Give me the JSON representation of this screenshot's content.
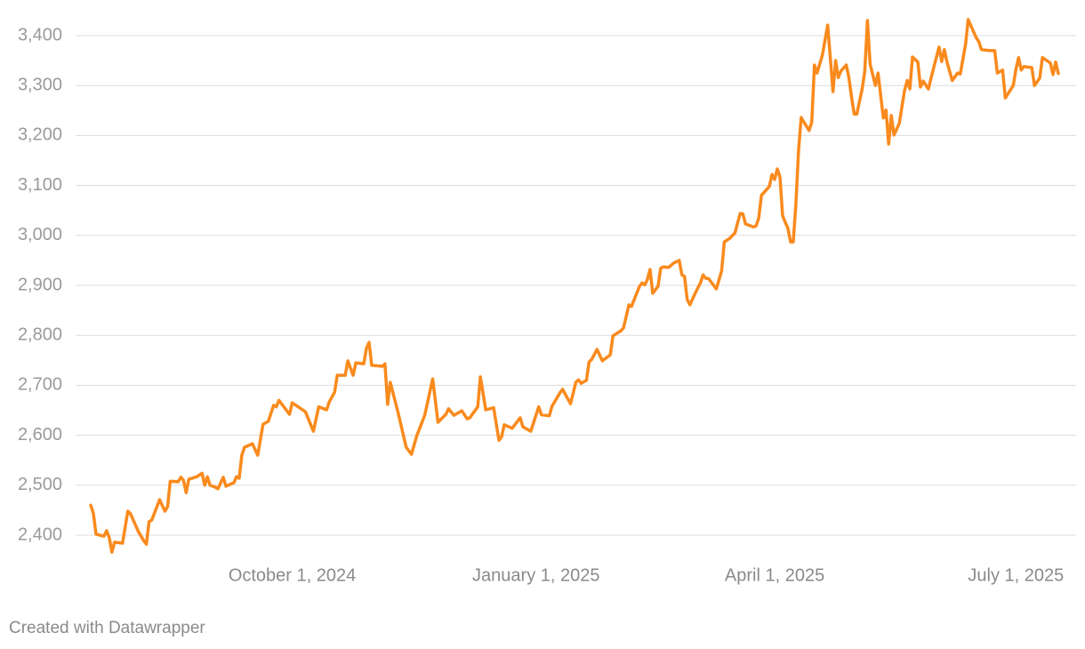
{
  "chart_data": {
    "type": "line",
    "color": "#f98a1d",
    "grid": true,
    "ylim": [
      2400,
      3400
    ],
    "yticks": [
      {
        "value": 2400,
        "label": "2,400"
      },
      {
        "value": 2500,
        "label": "2,500"
      },
      {
        "value": 2600,
        "label": "2,600"
      },
      {
        "value": 2700,
        "label": "2,700"
      },
      {
        "value": 2800,
        "label": "2,800"
      },
      {
        "value": 2900,
        "label": "2,900"
      },
      {
        "value": 3000,
        "label": "3,000"
      },
      {
        "value": 3100,
        "label": "3,100"
      },
      {
        "value": 3200,
        "label": "3,200"
      },
      {
        "value": 3300,
        "label": "3,300"
      },
      {
        "value": 3400,
        "label": "3,400"
      }
    ],
    "xlim": [
      "2024-07-17",
      "2025-07-17"
    ],
    "xticks": [
      {
        "value": "2024-10-01",
        "label": "October 1, 2024"
      },
      {
        "value": "2025-01-01",
        "label": "January 1, 2025"
      },
      {
        "value": "2025-04-01",
        "label": "April 1, 2025"
      },
      {
        "value": "2025-07-01",
        "label": "July 1, 2025"
      }
    ],
    "x": [
      "2024-07-17",
      "2024-07-18",
      "2024-07-19",
      "2024-07-22",
      "2024-07-23",
      "2024-07-24",
      "2024-07-25",
      "2024-07-26",
      "2024-07-29",
      "2024-07-31",
      "2024-08-01",
      "2024-08-04",
      "2024-08-06",
      "2024-08-07",
      "2024-08-08",
      "2024-08-09",
      "2024-08-12",
      "2024-08-14",
      "2024-08-15",
      "2024-08-16",
      "2024-08-19",
      "2024-08-20",
      "2024-08-21",
      "2024-08-22",
      "2024-08-23",
      "2024-08-26",
      "2024-08-28",
      "2024-08-29",
      "2024-08-30",
      "2024-08-31",
      "2024-09-02",
      "2024-09-03",
      "2024-09-05",
      "2024-09-06",
      "2024-09-09",
      "2024-09-10",
      "2024-09-11",
      "2024-09-12",
      "2024-09-13",
      "2024-09-16",
      "2024-09-18",
      "2024-09-20",
      "2024-09-22",
      "2024-09-24",
      "2024-09-25",
      "2024-09-26",
      "2024-09-30",
      "2024-10-01",
      "2024-10-06",
      "2024-10-08",
      "2024-10-09",
      "2024-10-11",
      "2024-10-14",
      "2024-10-15",
      "2024-10-17",
      "2024-10-18",
      "2024-10-21",
      "2024-10-22",
      "2024-10-24",
      "2024-10-25",
      "2024-10-28",
      "2024-10-29",
      "2024-10-30",
      "2024-10-31",
      "2024-11-04",
      "2024-11-05",
      "2024-11-06",
      "2024-11-07",
      "2024-11-10",
      "2024-11-13",
      "2024-11-15",
      "2024-11-17",
      "2024-11-20",
      "2024-11-23",
      "2024-11-25",
      "2024-11-28",
      "2024-11-29",
      "2024-12-01",
      "2024-12-04",
      "2024-12-06",
      "2024-12-07",
      "2024-12-10",
      "2024-12-11",
      "2024-12-13",
      "2024-12-16",
      "2024-12-18",
      "2024-12-19",
      "2024-12-20",
      "2024-12-23",
      "2024-12-26",
      "2024-12-27",
      "2024-12-30",
      "2025-01-02",
      "2025-01-03",
      "2025-01-06",
      "2025-01-07",
      "2025-01-10",
      "2025-01-11",
      "2025-01-14",
      "2025-01-16",
      "2025-01-17",
      "2025-01-18",
      "2025-01-20",
      "2025-01-21",
      "2025-01-22",
      "2025-01-24",
      "2025-01-26",
      "2025-01-29",
      "2025-01-30",
      "2025-02-02",
      "2025-02-03",
      "2025-02-05",
      "2025-02-06",
      "2025-02-09",
      "2025-02-10",
      "2025-02-11",
      "2025-02-12",
      "2025-02-13",
      "2025-02-14",
      "2025-02-16",
      "2025-02-17",
      "2025-02-18",
      "2025-02-20",
      "2025-02-22",
      "2025-02-24",
      "2025-02-25",
      "2025-02-26",
      "2025-02-27",
      "2025-02-28",
      "2025-03-02",
      "2025-03-04",
      "2025-03-05",
      "2025-03-06",
      "2025-03-07",
      "2025-03-10",
      "2025-03-12",
      "2025-03-13",
      "2025-03-15",
      "2025-03-17",
      "2025-03-19",
      "2025-03-20",
      "2025-03-21",
      "2025-03-24",
      "2025-03-25",
      "2025-03-26",
      "2025-03-27",
      "2025-03-30",
      "2025-03-31",
      "2025-04-01",
      "2025-04-02",
      "2025-04-03",
      "2025-04-04",
      "2025-04-06",
      "2025-04-07",
      "2025-04-08",
      "2025-04-09",
      "2025-04-10",
      "2025-04-11",
      "2025-04-12",
      "2025-04-14",
      "2025-04-15",
      "2025-04-16",
      "2025-04-17",
      "2025-04-19",
      "2025-04-21",
      "2025-04-23",
      "2025-04-24",
      "2025-04-25",
      "2025-04-26",
      "2025-04-28",
      "2025-04-29",
      "2025-04-30",
      "2025-05-01",
      "2025-05-02",
      "2025-05-04",
      "2025-05-05",
      "2025-05-06",
      "2025-05-07",
      "2025-05-09",
      "2025-05-10",
      "2025-05-12",
      "2025-05-13",
      "2025-05-14",
      "2025-05-15",
      "2025-05-16",
      "2025-05-18",
      "2025-05-20",
      "2025-05-21",
      "2025-05-22",
      "2025-05-23",
      "2025-05-25",
      "2025-05-26",
      "2025-05-27",
      "2025-05-29",
      "2025-05-30",
      "2025-06-02",
      "2025-06-03",
      "2025-06-04",
      "2025-06-05",
      "2025-06-07",
      "2025-06-09",
      "2025-06-10",
      "2025-06-12",
      "2025-06-13",
      "2025-06-16",
      "2025-06-17",
      "2025-06-18",
      "2025-06-21",
      "2025-06-23",
      "2025-06-24",
      "2025-06-26",
      "2025-06-27",
      "2025-06-30",
      "2025-07-01",
      "2025-07-02",
      "2025-07-03",
      "2025-07-04",
      "2025-07-07",
      "2025-07-08",
      "2025-07-10",
      "2025-07-11",
      "2025-07-14",
      "2025-07-15",
      "2025-07-16",
      "2025-07-17"
    ],
    "values": [
      2460,
      2444,
      2402,
      2398,
      2409,
      2395,
      2366,
      2386,
      2384,
      2448,
      2443,
      2407,
      2389,
      2382,
      2427,
      2430,
      2471,
      2448,
      2457,
      2508,
      2507,
      2516,
      2510,
      2485,
      2512,
      2517,
      2524,
      2500,
      2517,
      2500,
      2496,
      2493,
      2516,
      2498,
      2505,
      2517,
      2514,
      2560,
      2576,
      2583,
      2560,
      2622,
      2628,
      2660,
      2657,
      2670,
      2642,
      2665,
      2647,
      2621,
      2608,
      2657,
      2651,
      2667,
      2686,
      2720,
      2720,
      2749,
      2720,
      2745,
      2743,
      2774,
      2786,
      2740,
      2738,
      2743,
      2662,
      2706,
      2644,
      2576,
      2562,
      2599,
      2640,
      2713,
      2626,
      2642,
      2653,
      2640,
      2649,
      2633,
      2635,
      2657,
      2717,
      2651,
      2655,
      2590,
      2597,
      2621,
      2614,
      2635,
      2617,
      2608,
      2657,
      2641,
      2639,
      2658,
      2685,
      2692,
      2663,
      2706,
      2711,
      2704,
      2710,
      2747,
      2752,
      2772,
      2749,
      2761,
      2799,
      2809,
      2815,
      2861,
      2858,
      2898,
      2905,
      2901,
      2912,
      2932,
      2884,
      2898,
      2934,
      2937,
      2936,
      2945,
      2950,
      2921,
      2918,
      2872,
      2861,
      2884,
      2905,
      2921,
      2914,
      2914,
      2893,
      2929,
      2987,
      2994,
      3005,
      3044,
      3043,
      3023,
      3017,
      3019,
      3035,
      3080,
      3098,
      3122,
      3112,
      3133,
      3117,
      3039,
      3014,
      2987,
      2987,
      3062,
      3169,
      3236,
      3227,
      3210,
      3227,
      3341,
      3325,
      3361,
      3421,
      3288,
      3350,
      3316,
      3329,
      3341,
      3316,
      3277,
      3243,
      3243,
      3293,
      3329,
      3430,
      3343,
      3300,
      3325,
      3235,
      3251,
      3183,
      3240,
      3201,
      3224,
      3290,
      3310,
      3293,
      3357,
      3347,
      3297,
      3309,
      3293,
      3315,
      3377,
      3348,
      3372,
      3347,
      3310,
      3325,
      3323,
      3382,
      3432,
      3396,
      3388,
      3372,
      3370,
      3370,
      3325,
      3331,
      3275,
      3300,
      3332,
      3356,
      3331,
      3338,
      3336,
      3300,
      3315,
      3356,
      3345,
      3322,
      3347,
      3324
    ]
  },
  "credit": "Created with Datawrapper"
}
